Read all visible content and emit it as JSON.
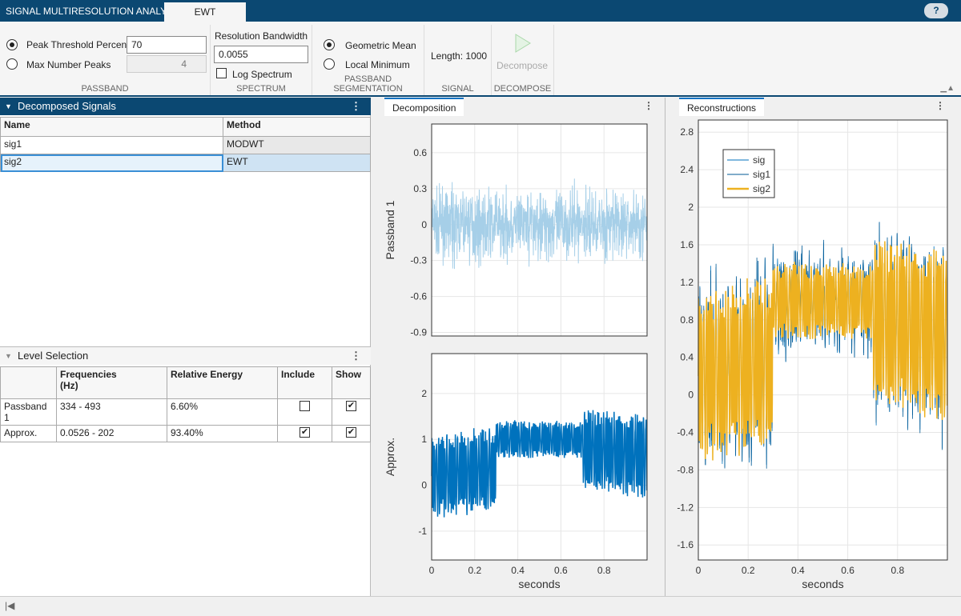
{
  "app": {
    "title": "SIGNAL MULTIRESOLUTION ANALYZER",
    "tab": "EWT",
    "help": "?"
  },
  "toolstrip": {
    "passband": {
      "label": "PASSBAND",
      "peak_threshold_label": "Peak Threshold Percent",
      "peak_threshold_value": "70",
      "peak_threshold_selected": true,
      "max_peaks_label": "Max Number Peaks",
      "max_peaks_value": "4",
      "max_peaks_selected": false
    },
    "spectrum": {
      "label": "SPECTRUM",
      "resolution_bandwidth_label": "Resolution Bandwidth",
      "resolution_bandwidth_value": "0.0055",
      "log_spectrum_label": "Log Spectrum",
      "log_spectrum_checked": false
    },
    "segmentation": {
      "label": "PASSBAND SEGMENTATION",
      "geometric_mean_label": "Geometric Mean",
      "geometric_mean_selected": true,
      "local_minimum_label": "Local Minimum"
    },
    "signal": {
      "label": "SIGNAL",
      "length_text": "Length:  1000"
    },
    "decompose": {
      "label": "DECOMPOSE",
      "button_label": "Decompose"
    }
  },
  "decomposed_signals": {
    "title": "Decomposed Signals",
    "columns": [
      "Name",
      "Method"
    ],
    "rows": [
      {
        "name": "sig1",
        "method": "MODWT"
      },
      {
        "name": "sig2",
        "method": "EWT",
        "selected": true
      }
    ]
  },
  "level_selection": {
    "title": "Level Selection",
    "columns": [
      "",
      "Frequencies\n(Hz)",
      "Relative Energy",
      "Include",
      "Show"
    ],
    "rows": [
      {
        "level": "Passband 1",
        "freq": "334 - 493",
        "energy": "6.60%",
        "include": false,
        "show": true
      },
      {
        "level": "Approx.",
        "freq": "0.0526 - 202",
        "energy": "93.40%",
        "include": true,
        "show": true
      }
    ]
  },
  "decomposition_tab": "Decomposition",
  "reconstructions_tab": "Reconstructions",
  "colors": {
    "header": "#0b4872",
    "blue": "#0072bd",
    "light_blue": "#a6cfe8",
    "orange": "#edb120"
  },
  "chart_data": [
    {
      "type": "line",
      "ylabel": "Passband 1",
      "xlabel": "",
      "xlim": [
        0,
        1
      ],
      "ylim": [
        -0.93,
        0.84
      ],
      "xticks": [
        "0",
        "0.2",
        "0.4",
        "0.6",
        "0.8"
      ],
      "yticks": [
        "0.6",
        "0.3",
        "0",
        "-0.3",
        "-0.6",
        "-0.9"
      ],
      "grid": true
    },
    {
      "type": "line",
      "ylabel": "Approx.",
      "xlabel": "seconds",
      "xlim": [
        0,
        1
      ],
      "ylim": [
        -1.63,
        2.87
      ],
      "xticks": [
        "0",
        "0.2",
        "0.4",
        "0.6",
        "0.8"
      ],
      "yticks": [
        "2",
        "1",
        "0",
        "-1"
      ],
      "grid": true
    },
    {
      "type": "line",
      "xlabel": "seconds",
      "xlim": [
        0,
        1
      ],
      "ylim": [
        -1.76,
        2.93
      ],
      "xticks": [
        "0",
        "0.2",
        "0.4",
        "0.6",
        "0.8"
      ],
      "yticks": [
        "2.8",
        "2.4",
        "2",
        "1.6",
        "1.2",
        "0.8",
        "0.4",
        "0",
        "-0.4",
        "-0.8",
        "-1.2",
        "-1.6"
      ],
      "grid": true,
      "legend": [
        "sig",
        "sig1",
        "sig2"
      ],
      "legend_position": "top-left"
    }
  ]
}
